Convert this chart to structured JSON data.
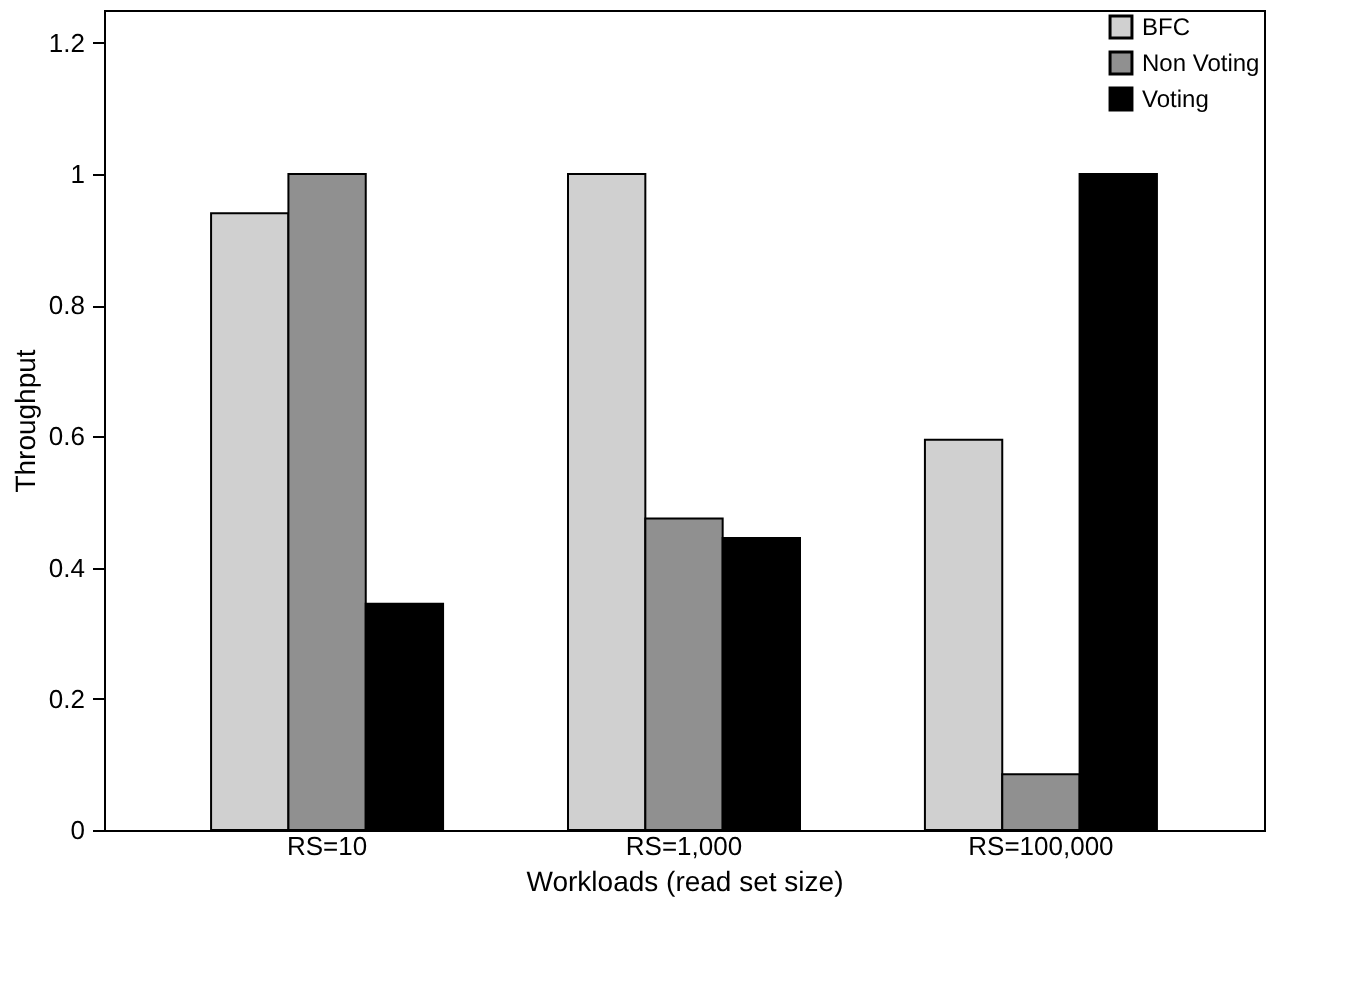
{
  "chart_data": {
    "type": "bar",
    "xlabel": "Workloads (read set size)",
    "ylabel": "Throughput",
    "categories": [
      "RS=10",
      "RS=1,000",
      "RS=100,000"
    ],
    "series": [
      {
        "name": "BFC",
        "color": "#d0d0d0",
        "values": [
          0.94,
          1.0,
          0.595
        ]
      },
      {
        "name": "Non Voting",
        "color": "#909090",
        "values": [
          1.0,
          0.475,
          0.085
        ]
      },
      {
        "name": "Voting",
        "color": "#000000",
        "values": [
          0.345,
          0.445,
          1.0
        ]
      }
    ],
    "ylim": [
      0,
      1.25
    ],
    "yticks": [
      0,
      0.2,
      0.4,
      0.6,
      0.8,
      1,
      1.2
    ],
    "grid": false,
    "legend": "top right"
  }
}
